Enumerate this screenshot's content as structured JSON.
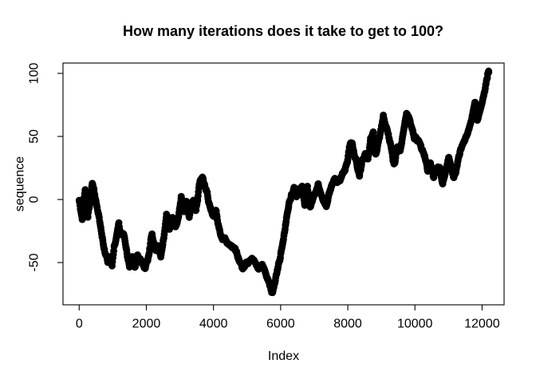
{
  "figure": {
    "background": "#ffffff",
    "foreground": "#000000"
  },
  "chart_data": {
    "type": "scatter",
    "title": "How many iterations does it take to get to 100?",
    "xlabel": "Index",
    "ylabel": "sequence",
    "x_ticks": [
      0,
      2000,
      4000,
      6000,
      8000,
      10000,
      12000
    ],
    "y_ticks": [
      -50,
      0,
      50,
      100
    ],
    "xlim": [
      -482,
      12656
    ],
    "ylim": [
      -83.5,
      108.2
    ],
    "grid": false,
    "legend": "none",
    "n_points": 12200,
    "final_value": 101,
    "marker": "open-circle",
    "point_color": "#000000",
    "series": [
      {
        "name": "sequence",
        "anchors": [
          [
            1,
            0
          ],
          [
            40,
            -8
          ],
          [
            90,
            -14
          ],
          [
            140,
            3
          ],
          [
            180,
            8
          ],
          [
            220,
            -10
          ],
          [
            260,
            -15
          ],
          [
            300,
            -6
          ],
          [
            340,
            2
          ],
          [
            390,
            13
          ],
          [
            440,
            7
          ],
          [
            500,
            -2
          ],
          [
            560,
            -10
          ],
          [
            620,
            -19
          ],
          [
            680,
            -27
          ],
          [
            750,
            -38
          ],
          [
            850,
            -48
          ],
          [
            920,
            -44
          ],
          [
            980,
            -50
          ],
          [
            1045,
            -36
          ],
          [
            1120,
            -26
          ],
          [
            1180,
            -18
          ],
          [
            1240,
            -28
          ],
          [
            1330,
            -26
          ],
          [
            1400,
            -38
          ],
          [
            1500,
            -51
          ],
          [
            1590,
            -44
          ],
          [
            1660,
            -52
          ],
          [
            1740,
            -43
          ],
          [
            1830,
            -50
          ],
          [
            1900,
            -53
          ],
          [
            1970,
            -56
          ],
          [
            2050,
            -48
          ],
          [
            2170,
            -27
          ],
          [
            2290,
            -39
          ],
          [
            2360,
            -35
          ],
          [
            2430,
            -43
          ],
          [
            2520,
            -28
          ],
          [
            2600,
            -10
          ],
          [
            2690,
            -21
          ],
          [
            2780,
            -13
          ],
          [
            2870,
            -19
          ],
          [
            2950,
            -14
          ],
          [
            3040,
            4
          ],
          [
            3120,
            -7
          ],
          [
            3200,
            1
          ],
          [
            3280,
            -12
          ],
          [
            3400,
            2
          ],
          [
            3480,
            -7
          ],
          [
            3600,
            16
          ],
          [
            3680,
            15
          ],
          [
            3790,
            6
          ],
          [
            3870,
            -3
          ],
          [
            3960,
            -11
          ],
          [
            4010,
            -16
          ],
          [
            4070,
            -9
          ],
          [
            4160,
            -22
          ],
          [
            4280,
            -30
          ],
          [
            4400,
            -32
          ],
          [
            4500,
            -34
          ],
          [
            4650,
            -38
          ],
          [
            4750,
            -46
          ],
          [
            4850,
            -56
          ],
          [
            4950,
            -52
          ],
          [
            5050,
            -50
          ],
          [
            5150,
            -48
          ],
          [
            5250,
            -53
          ],
          [
            5350,
            -57
          ],
          [
            5450,
            -54
          ],
          [
            5550,
            -60
          ],
          [
            5650,
            -68
          ],
          [
            5760,
            -75
          ],
          [
            5830,
            -65
          ],
          [
            5900,
            -57
          ],
          [
            5980,
            -48
          ],
          [
            6060,
            -33
          ],
          [
            6150,
            -18
          ],
          [
            6240,
            -6
          ],
          [
            6320,
            2
          ],
          [
            6400,
            9
          ],
          [
            6480,
            3
          ],
          [
            6560,
            10
          ],
          [
            6640,
            12
          ],
          [
            6720,
            -2
          ],
          [
            6800,
            11
          ],
          [
            6880,
            -5
          ],
          [
            6960,
            3
          ],
          [
            7040,
            8
          ],
          [
            7120,
            14
          ],
          [
            7200,
            6
          ],
          [
            7280,
            1
          ],
          [
            7360,
            -3
          ],
          [
            7440,
            5
          ],
          [
            7520,
            10
          ],
          [
            7600,
            15
          ],
          [
            7680,
            13
          ],
          [
            7760,
            17
          ],
          [
            7840,
            20
          ],
          [
            7920,
            24
          ],
          [
            8000,
            32
          ],
          [
            8060,
            42
          ],
          [
            8130,
            46
          ],
          [
            8220,
            34
          ],
          [
            8300,
            24
          ],
          [
            8350,
            21
          ],
          [
            8440,
            33
          ],
          [
            8520,
            38
          ],
          [
            8600,
            31
          ],
          [
            8680,
            47
          ],
          [
            8760,
            55
          ],
          [
            8830,
            37
          ],
          [
            8900,
            45
          ],
          [
            8970,
            55
          ],
          [
            9060,
            68
          ],
          [
            9150,
            58
          ],
          [
            9250,
            45
          ],
          [
            9350,
            30
          ],
          [
            9400,
            27
          ],
          [
            9480,
            41
          ],
          [
            9560,
            36
          ],
          [
            9650,
            50
          ],
          [
            9750,
            66
          ],
          [
            9830,
            62
          ],
          [
            9900,
            55
          ],
          [
            9980,
            48
          ],
          [
            10080,
            46
          ],
          [
            10180,
            40
          ],
          [
            10280,
            33
          ],
          [
            10380,
            23
          ],
          [
            10460,
            28
          ],
          [
            10560,
            16
          ],
          [
            10650,
            22
          ],
          [
            10740,
            25
          ],
          [
            10830,
            14
          ],
          [
            10920,
            24
          ],
          [
            11010,
            36
          ],
          [
            11100,
            26
          ],
          [
            11160,
            19
          ],
          [
            11250,
            27
          ],
          [
            11340,
            36
          ],
          [
            11420,
            41
          ],
          [
            11500,
            46
          ],
          [
            11580,
            51
          ],
          [
            11660,
            58
          ],
          [
            11740,
            68
          ],
          [
            11790,
            75
          ],
          [
            11860,
            61
          ],
          [
            11930,
            67
          ],
          [
            12000,
            74
          ],
          [
            12060,
            82
          ],
          [
            12120,
            90
          ],
          [
            12170,
            98
          ],
          [
            12200,
            101
          ]
        ]
      }
    ]
  }
}
